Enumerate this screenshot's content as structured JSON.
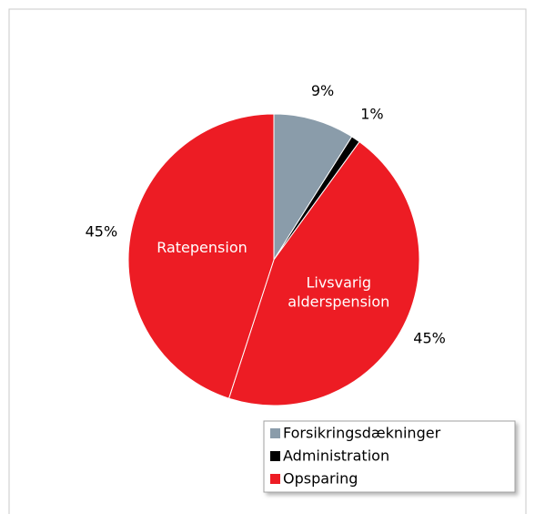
{
  "chart_data": {
    "type": "pie",
    "slices": [
      {
        "value": 9,
        "legend": 0
      },
      {
        "value": 1,
        "legend": 1
      },
      {
        "value": 45,
        "legend": 2,
        "label": [
          "Livsvarig",
          "alderspension"
        ]
      },
      {
        "value": 45,
        "legend": 2,
        "label": [
          "Ratepension"
        ]
      }
    ],
    "value_labels": [
      "9%",
      "1%",
      "45%",
      "45%"
    ],
    "legend": [
      {
        "name": "Forsikringsdækninger",
        "color": "#8a9caa"
      },
      {
        "name": "Administration",
        "color": "#000000"
      },
      {
        "name": "Opsparing",
        "color": "#ed1c24"
      }
    ]
  }
}
